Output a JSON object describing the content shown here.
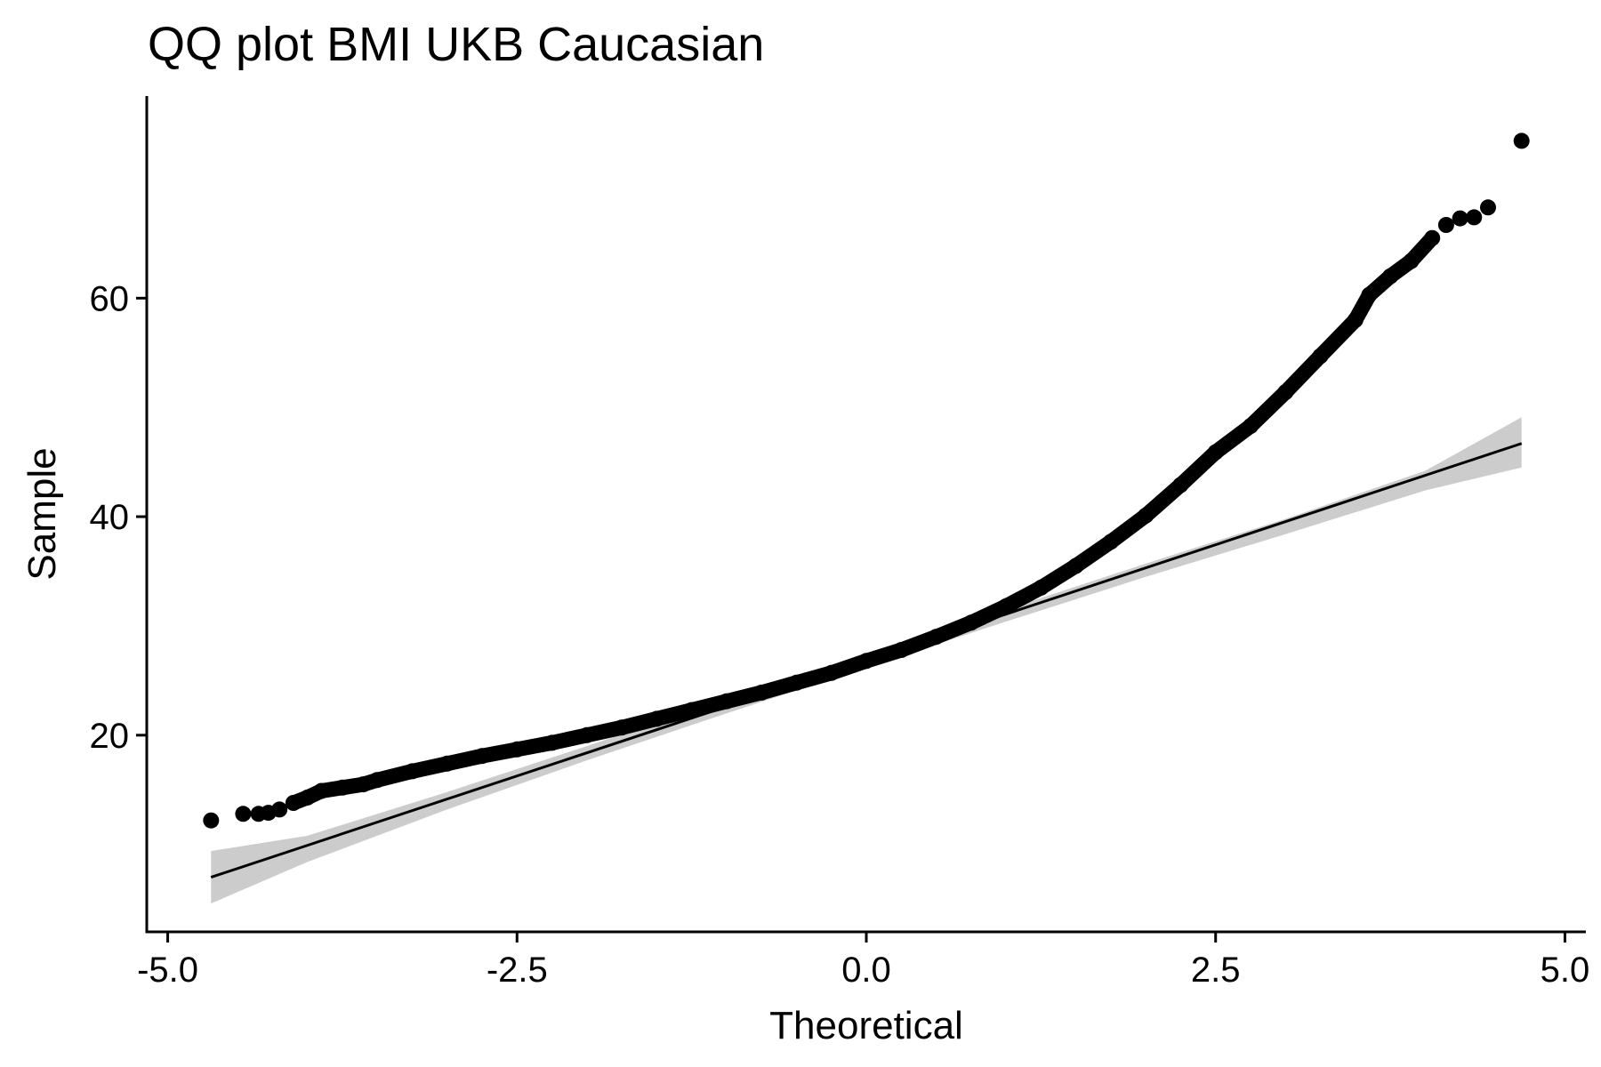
{
  "chart_data": {
    "type": "scatter",
    "title": "QQ plot BMI UKB Caucasian",
    "xlabel": "Theoretical",
    "ylabel": "Sample",
    "xlim": [
      -5.15,
      5.15
    ],
    "ylim": [
      2,
      78.5
    ],
    "x_ticks": [
      -5.0,
      -2.5,
      0.0,
      2.5,
      5.0
    ],
    "x_tick_labels": [
      "-5.0",
      "-2.5",
      "0.0",
      "2.5",
      "5.0"
    ],
    "y_ticks": [
      20,
      40,
      60
    ],
    "y_tick_labels": [
      "20",
      "40",
      "60"
    ],
    "grid": false,
    "legend": "none",
    "colors": {
      "points": "#000000",
      "line": "#000000",
      "band": "#cccccc"
    },
    "series": [
      {
        "type": "points",
        "points": [
          [
            -4.69,
            12.2
          ],
          [
            -4.46,
            12.8
          ],
          [
            -4.35,
            12.8
          ],
          [
            -4.28,
            12.9
          ],
          [
            -4.2,
            13.2
          ],
          [
            -4.1,
            13.8
          ],
          [
            -4.0,
            14.3
          ],
          [
            -3.9,
            14.9
          ],
          [
            -3.75,
            15.2
          ],
          [
            -3.6,
            15.5
          ],
          [
            -3.5,
            15.9
          ],
          [
            -3.25,
            16.7
          ],
          [
            -3.0,
            17.4
          ],
          [
            -2.75,
            18.1
          ],
          [
            -2.5,
            18.7
          ],
          [
            -2.25,
            19.3
          ],
          [
            -2.0,
            20.0
          ],
          [
            -1.75,
            20.7
          ],
          [
            -1.5,
            21.5
          ],
          [
            -1.25,
            22.3
          ],
          [
            -1.0,
            23.1
          ],
          [
            -0.75,
            23.9
          ],
          [
            -0.5,
            24.8
          ],
          [
            -0.25,
            25.7
          ],
          [
            0.0,
            26.8
          ],
          [
            0.25,
            27.8
          ],
          [
            0.5,
            29.0
          ],
          [
            0.75,
            30.3
          ],
          [
            1.0,
            31.8
          ],
          [
            1.25,
            33.5
          ],
          [
            1.5,
            35.5
          ],
          [
            1.75,
            37.7
          ],
          [
            2.0,
            40.1
          ],
          [
            2.25,
            42.9
          ],
          [
            2.5,
            45.9
          ],
          [
            2.75,
            48.3
          ],
          [
            3.0,
            51.4
          ],
          [
            3.25,
            54.7
          ],
          [
            3.5,
            58.0
          ],
          [
            3.6,
            60.3
          ],
          [
            3.75,
            62.0
          ],
          [
            3.9,
            63.4
          ],
          [
            4.05,
            65.5
          ],
          [
            4.15,
            66.7
          ],
          [
            4.25,
            67.3
          ],
          [
            4.35,
            67.4
          ],
          [
            4.45,
            68.3
          ],
          [
            4.69,
            74.4
          ]
        ]
      },
      {
        "type": "reference_line",
        "points": [
          [
            -4.69,
            7.0
          ],
          [
            4.69,
            46.7
          ]
        ]
      },
      {
        "type": "confidence_band",
        "upper": [
          [
            -4.69,
            9.4
          ],
          [
            -4.0,
            10.8
          ],
          [
            -3.0,
            14.8
          ],
          [
            -2.0,
            19.0
          ],
          [
            -1.0,
            23.3
          ],
          [
            0.0,
            27.3
          ],
          [
            1.0,
            31.5
          ],
          [
            2.0,
            35.7
          ],
          [
            3.0,
            39.8
          ],
          [
            4.0,
            44.2
          ],
          [
            4.69,
            49.1
          ]
        ],
        "lower": [
          [
            -4.69,
            4.6
          ],
          [
            -4.0,
            8.4
          ],
          [
            -3.0,
            13.2
          ],
          [
            -2.0,
            17.7
          ],
          [
            -1.0,
            22.0
          ],
          [
            0.0,
            26.2
          ],
          [
            1.0,
            30.4
          ],
          [
            2.0,
            34.5
          ],
          [
            3.0,
            38.4
          ],
          [
            4.0,
            42.4
          ],
          [
            4.69,
            44.5
          ]
        ]
      }
    ]
  }
}
